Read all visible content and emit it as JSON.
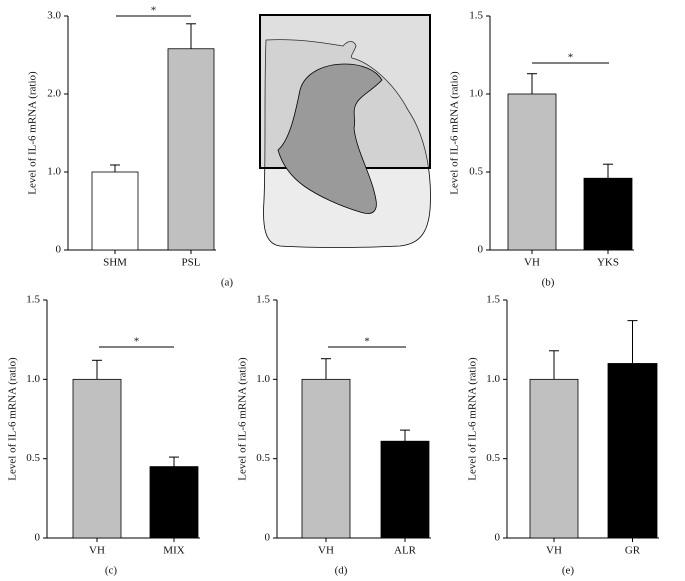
{
  "chart_data": [
    {
      "type": "bar",
      "panel_label": "(a)",
      "ylabel": "Level of IL-6 mRNA (ratio)",
      "categories": [
        "SHM",
        "PSL"
      ],
      "values": [
        1.0,
        2.58
      ],
      "errors": [
        0.09,
        0.32
      ],
      "colors": [
        "#ffffff",
        "#c0c0c0"
      ],
      "ylim": [
        0,
        3
      ],
      "yticks": [
        0,
        {
          "value": 1,
          "label": "1.0"
        },
        {
          "value": 2,
          "label": "2.0"
        },
        {
          "value": 3,
          "label": "3.0"
        }
      ],
      "significance": "*"
    },
    {
      "type": "bar",
      "panel_label": "(b)",
      "ylabel": "Level of IL-6 mRNA (ratio)",
      "categories": [
        "VH",
        "YKS"
      ],
      "values": [
        1.0,
        0.46
      ],
      "errors": [
        0.13,
        0.09
      ],
      "colors": [
        "#c0c0c0",
        "#000000"
      ],
      "ylim": [
        0,
        1.5
      ],
      "yticks": [
        0,
        0.5,
        {
          "value": 1,
          "label": "1.0"
        },
        1.5
      ],
      "significance": "*"
    },
    {
      "type": "bar",
      "panel_label": "(c)",
      "ylabel": "Level of IL-6 mRNA (ratio)",
      "categories": [
        "VH",
        "MIX"
      ],
      "values": [
        1.0,
        0.45
      ],
      "errors": [
        0.12,
        0.06
      ],
      "colors": [
        "#c0c0c0",
        "#000000"
      ],
      "ylim": [
        0,
        1.5
      ],
      "yticks": [
        0,
        0.5,
        {
          "value": 1,
          "label": "1.0"
        },
        1.5
      ],
      "significance": "*"
    },
    {
      "type": "bar",
      "panel_label": "(d)",
      "ylabel": "Level of IL-6 mRNA (ratio)",
      "categories": [
        "VH",
        "ALR"
      ],
      "values": [
        1.0,
        0.61
      ],
      "errors": [
        0.13,
        0.07
      ],
      "colors": [
        "#c0c0c0",
        "#000000"
      ],
      "ylim": [
        0,
        1.5
      ],
      "yticks": [
        0,
        0.5,
        {
          "value": 1,
          "label": "1.0"
        },
        1.5
      ],
      "significance": "*"
    },
    {
      "type": "bar",
      "panel_label": "(e)",
      "ylabel": "Level of IL-6 mRNA (ratio)",
      "categories": [
        "VH",
        "GR"
      ],
      "values": [
        1.0,
        1.1
      ],
      "errors": [
        0.18,
        0.27
      ],
      "colors": [
        "#c0c0c0",
        "#000000"
      ],
      "ylim": [
        0,
        1.5
      ],
      "yticks": [
        0,
        0.5,
        {
          "value": 1,
          "label": "1.0"
        },
        1.5
      ]
    }
  ]
}
